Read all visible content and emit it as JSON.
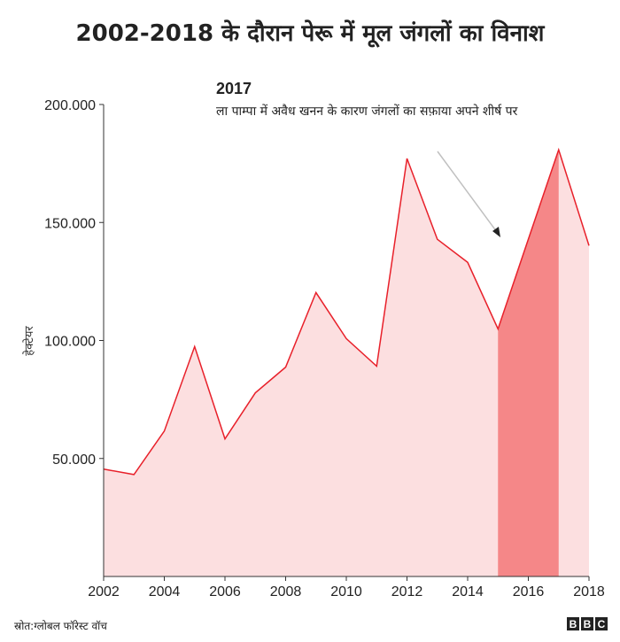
{
  "chart_data": {
    "type": "area",
    "title": "2002-2018 के दौरान पेरू में मूल जंगलों का विनाश",
    "xlabel": "",
    "ylabel": "हेक्टेयर",
    "x": [
      2002,
      2003,
      2004,
      2005,
      2006,
      2007,
      2008,
      2009,
      2010,
      2011,
      2012,
      2013,
      2014,
      2015,
      2016,
      2017,
      2018
    ],
    "values": [
      45500,
      43200,
      61600,
      97400,
      58300,
      77800,
      88700,
      120300,
      100800,
      89100,
      177100,
      142900,
      133100,
      104900,
      142900,
      180800,
      140200
    ],
    "xlim": [
      2002,
      2018
    ],
    "ylim": [
      0,
      200000
    ],
    "x_ticks": [
      "2002",
      "2004",
      "2006",
      "2008",
      "2010",
      "2012",
      "2014",
      "2016",
      "2018"
    ],
    "y_ticks": [
      {
        "value": 50000,
        "label": "50.000"
      },
      {
        "value": 100000,
        "label": "100.000"
      },
      {
        "value": 150000,
        "label": "150.000"
      },
      {
        "value": 200000,
        "label": "200.000"
      }
    ],
    "highlight_range": [
      2015,
      2017
    ],
    "grid": false,
    "colors": {
      "line": "#e8202a",
      "fill": "#fcdfe0",
      "highlight": "#f58788",
      "arrow": "#c0c0c0"
    },
    "annotation": {
      "year": "2017",
      "text": "ला पाम्पा में अवैध खनन के कारण जंगलों का सफ़ाया अपने शीर्ष पर"
    }
  },
  "footer": {
    "source": "स्रोत:ग्लोबल फॉरेस्ट वॉच",
    "logo": [
      "B",
      "B",
      "C"
    ]
  }
}
